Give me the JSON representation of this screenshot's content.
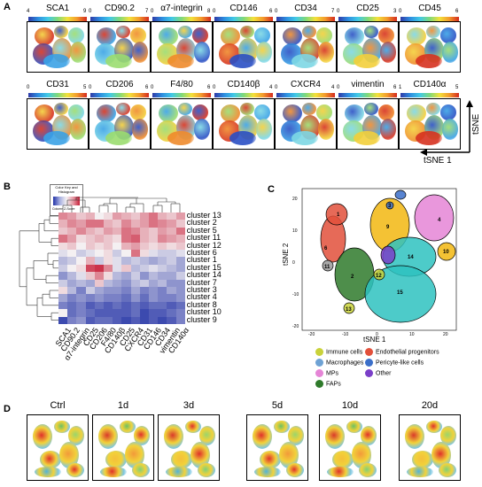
{
  "panel_labels": {
    "A": "A",
    "B": "B",
    "C": "C",
    "D": "D"
  },
  "panel_a": {
    "markers": [
      {
        "name": "SCA1",
        "min": "4",
        "max": "9"
      },
      {
        "name": "CD90.2",
        "min": "0",
        "max": "7"
      },
      {
        "name": "α7-integrin",
        "min": "0",
        "max": "8"
      },
      {
        "name": "CD146",
        "min": "0",
        "max": "6"
      },
      {
        "name": "CD34",
        "min": "0",
        "max": "7"
      },
      {
        "name": "CD25",
        "min": "0",
        "max": "3"
      },
      {
        "name": "CD45",
        "min": "0",
        "max": "6"
      },
      {
        "name": "CD31",
        "min": "0",
        "max": "5"
      },
      {
        "name": "CD206",
        "min": "0",
        "max": "6"
      },
      {
        "name": "F4/80",
        "min": "0",
        "max": "6"
      },
      {
        "name": "CD140β",
        "min": "0",
        "max": "4"
      },
      {
        "name": "CXCR4",
        "min": "0",
        "max": "4"
      },
      {
        "name": "vimentin",
        "min": "0",
        "max": "6"
      },
      {
        "name": "CD140α",
        "min": "1",
        "max": "5"
      }
    ],
    "axis_x": "tSNE 1",
    "axis_y": "tSNE 2"
  },
  "panel_b": {
    "key_title": "Color Key and Histogram",
    "key_xlabel": "Column Z-Score",
    "key_ticks": [
      "-1",
      "0",
      "1"
    ],
    "rows": [
      "cluster 13",
      "cluster 2",
      "cluster 5",
      "cluster 11",
      "cluster 12",
      "cluster 6",
      "cluster 1",
      "cluster 15",
      "cluster 14",
      "cluster 7",
      "cluster 3",
      "cluster 4",
      "cluster 8",
      "cluster 10",
      "cluster 9"
    ],
    "columns": [
      "SCA1",
      "CD90.2",
      "α7-integrin",
      "CD25",
      "CD206",
      "F4/80",
      "CD140β",
      "CD25",
      "CXCR4",
      "CD31",
      "CD146",
      "CD34",
      "vimentin",
      "CD140α"
    ]
  },
  "panel_c": {
    "xlabel": "tSNE 1",
    "ylabel": "tSNE 2",
    "xticks": [
      "-20",
      "-10",
      "0",
      "10",
      "20"
    ],
    "yticks": [
      "20",
      "10",
      "0",
      "-10",
      "-20"
    ],
    "cluster_labels": [
      "1",
      "2",
      "3",
      "4",
      "6",
      "9",
      "10",
      "11",
      "12",
      "13",
      "14",
      "15"
    ],
    "legend": [
      {
        "label": "Immune cells",
        "color": "#c9d23a"
      },
      {
        "label": "Endothelial progenitors",
        "color": "#e2503b"
      },
      {
        "label": "Macrophages",
        "color": "#6ea2d4"
      },
      {
        "label": "Pericyte-like cells",
        "color": "#3b6fc9"
      },
      {
        "label": "MPs",
        "color": "#e585d6"
      },
      {
        "label": "Other",
        "color": "#7a3fc8"
      },
      {
        "label": "FAPs",
        "color": "#2f7a2b"
      }
    ]
  },
  "panel_d": {
    "timepoints": [
      "Ctrl",
      "1d",
      "3d",
      "5d",
      "10d",
      "20d"
    ]
  },
  "tsne_legend_axes": {
    "x": "tSNE 1",
    "y": "tSNE 2"
  }
}
